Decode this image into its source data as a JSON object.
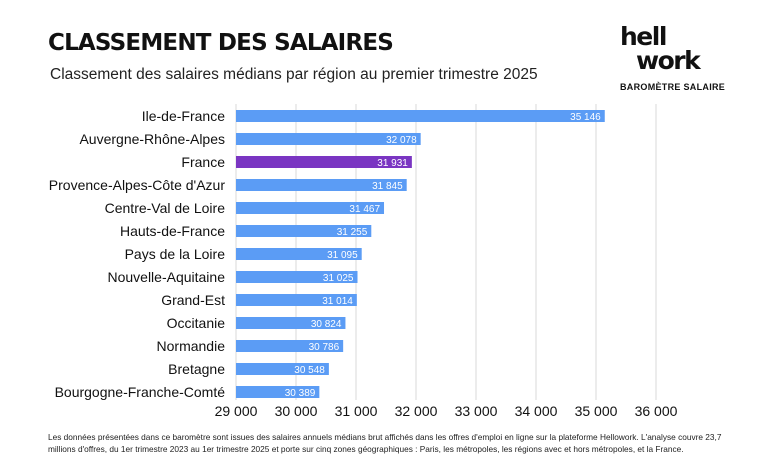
{
  "header": {
    "title": "CLASSEMENT DES SALAIRES",
    "subtitle": "Classement des salaires médians par région au premier trimestre 2025"
  },
  "logo": {
    "line1": "hell",
    "line2": "work",
    "tagline": "BAROMÈTRE SALAIRE"
  },
  "colors": {
    "bar": "#5b9cf5",
    "highlight": "#7a35c2",
    "grid": "#d9d9d9",
    "label": "#ffffff"
  },
  "chart_data": {
    "type": "bar",
    "orientation": "horizontal",
    "title": "Classement des salaires médians par région au premier trimestre 2025",
    "xlabel": "",
    "ylabel": "",
    "xlim": [
      29000,
      36000
    ],
    "xticks": [
      29000,
      30000,
      31000,
      32000,
      33000,
      34000,
      35000,
      36000
    ],
    "xtick_labels": [
      "29 000",
      "30 000",
      "31 000",
      "32 000",
      "33 000",
      "34 000",
      "35 000",
      "36 000"
    ],
    "grid": true,
    "categories": [
      "Ile-de-France",
      "Auvergne-Rhône-Alpes",
      "France",
      "Provence-Alpes-Côte d'Azur",
      "Centre-Val de Loire",
      "Hauts-de-France",
      "Pays de la Loire",
      "Nouvelle-Aquitaine",
      "Grand-Est",
      "Occitanie",
      "Normandie",
      "Bretagne",
      "Bourgogne-Franche-Comté"
    ],
    "values": [
      35146,
      32078,
      31931,
      31845,
      31467,
      31255,
      31095,
      31025,
      31014,
      30824,
      30786,
      30548,
      30389
    ],
    "value_labels": [
      "35 146",
      "32 078",
      "31 931",
      "31 845",
      "31 467",
      "31 255",
      "31 095",
      "31 025",
      "31 014",
      "30 824",
      "30 786",
      "30 548",
      "30 389"
    ],
    "highlighted": "France"
  },
  "footnote": "Les données présentées dans ce baromètre sont issues des salaires annuels médians brut affichés dans les offres d'emploi en ligne sur la plateforme Hellowork. L'analyse couvre 23,7 millions d'offres, du 1er trimestre 2023 au 1er trimestre 2025 et porte sur cinq zones géographiques : Paris, les métropoles, les régions avec et hors métropoles, et la France."
}
